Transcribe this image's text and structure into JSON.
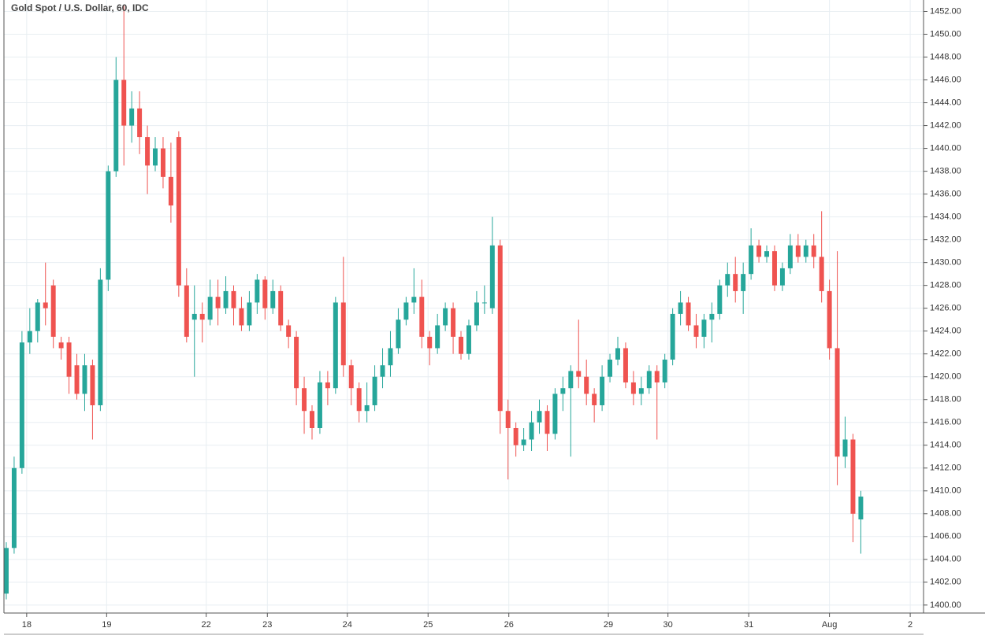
{
  "chart_data": {
    "type": "candlestick",
    "title": "Gold Spot / U.S. Dollar, 60, IDC",
    "up_color": "#26a69a",
    "down_color": "#ef5350",
    "grid": true,
    "ylim": [
      1399.3,
      1453
    ],
    "xlim": [
      -0.3,
      117
    ],
    "yticks": [
      {
        "value": 1400,
        "label": "1400.00"
      },
      {
        "value": 1402,
        "label": "1402.00"
      },
      {
        "value": 1404,
        "label": "1404.00"
      },
      {
        "value": 1406,
        "label": "1406.00"
      },
      {
        "value": 1408,
        "label": "1408.00"
      },
      {
        "value": 1410,
        "label": "1410.00"
      },
      {
        "value": 1412,
        "label": "1412.00"
      },
      {
        "value": 1414,
        "label": "1414.00"
      },
      {
        "value": 1416,
        "label": "1416.00"
      },
      {
        "value": 1418,
        "label": "1418.00"
      },
      {
        "value": 1420,
        "label": "1420.00"
      },
      {
        "value": 1422,
        "label": "1422.00"
      },
      {
        "value": 1424,
        "label": "1424.00"
      },
      {
        "value": 1426,
        "label": "1426.00"
      },
      {
        "value": 1428,
        "label": "1428.00"
      },
      {
        "value": 1430,
        "label": "1430.00"
      },
      {
        "value": 1432,
        "label": "1432.00"
      },
      {
        "value": 1434,
        "label": "1434.00"
      },
      {
        "value": 1436,
        "label": "1436.00"
      },
      {
        "value": 1438,
        "label": "1438.00"
      },
      {
        "value": 1440,
        "label": "1440.00"
      },
      {
        "value": 1442,
        "label": "1442.00"
      },
      {
        "value": 1444,
        "label": "1444.00"
      },
      {
        "value": 1446,
        "label": "1446.00"
      },
      {
        "value": 1448,
        "label": "1448.00"
      },
      {
        "value": 1450,
        "label": "1450.00"
      },
      {
        "value": 1452,
        "label": "1452.00"
      }
    ],
    "xticks": [
      {
        "value": 2.6,
        "label": "18"
      },
      {
        "value": 12.8,
        "label": "19"
      },
      {
        "value": 25.5,
        "label": "22"
      },
      {
        "value": 33.3,
        "label": "23"
      },
      {
        "value": 43.5,
        "label": "24"
      },
      {
        "value": 53.8,
        "label": "25"
      },
      {
        "value": 64.1,
        "label": "26"
      },
      {
        "value": 76.8,
        "label": "29"
      },
      {
        "value": 84.4,
        "label": "30"
      },
      {
        "value": 94.7,
        "label": "31"
      },
      {
        "value": 105.0,
        "label": "Aug"
      },
      {
        "value": 115.3,
        "label": "2"
      }
    ],
    "open": [
      1401,
      1405,
      1412,
      1423,
      1424,
      1426.5,
      1428,
      1423,
      1423,
      1421,
      1418.5,
      1421,
      1417.5,
      1428.5,
      1438,
      1446,
      1442,
      1443.5,
      1441,
      1438.5,
      1440,
      1437.5,
      1441,
      1428,
      1425,
      1425.5,
      1425,
      1427,
      1426,
      1427.5,
      1426,
      1424.5,
      1426.5,
      1428.5,
      1426,
      1427.5,
      1424.5,
      1423.5,
      1419,
      1417,
      1415.5,
      1419.5,
      1419,
      1426.5,
      1421,
      1419,
      1417,
      1417.5,
      1420,
      1421,
      1422.5,
      1425,
      1426.5,
      1427,
      1423.5,
      1422.5,
      1424.5,
      1426,
      1423.5,
      1422,
      1424.5,
      1426.5,
      1426,
      1431.5,
      1417,
      1415.5,
      1414,
      1414.5,
      1416,
      1417,
      1415,
      1418.5,
      1419,
      1420.5,
      1420,
      1418.5,
      1417.5,
      1420,
      1421.5,
      1422.5,
      1419.5,
      1418.5,
      1419,
      1420.5,
      1419.5,
      1421.5,
      1425.5,
      1426.5,
      1424.5,
      1423.5,
      1425,
      1425.5,
      1428,
      1429,
      1427.5,
      1429,
      1431.5,
      1430.5,
      1431,
      1428,
      1429.5,
      1431.5,
      1430.5,
      1431.5,
      1430.5,
      1427.5,
      1422.5,
      1413,
      1414.5,
      1407.5
    ],
    "high": [
      1405.5,
      1413,
      1424,
      1426,
      1426.8,
      1430,
      1428.5,
      1423.5,
      1423.5,
      1422,
      1422,
      1421.5,
      1429.5,
      1438.5,
      1448,
      1452.5,
      1445,
      1445,
      1442,
      1441,
      1441,
      1440.5,
      1441.5,
      1429.5,
      1428,
      1426.5,
      1428.5,
      1428.5,
      1428.8,
      1428,
      1427,
      1427.5,
      1429,
      1428.8,
      1428.5,
      1428,
      1425,
      1424,
      1420,
      1417.5,
      1420.5,
      1420.5,
      1427,
      1430.5,
      1421.5,
      1419.5,
      1419.5,
      1421,
      1422.5,
      1424,
      1426,
      1427,
      1429.5,
      1428.5,
      1424,
      1425.5,
      1426.5,
      1426.5,
      1424,
      1425,
      1427.5,
      1428,
      1434,
      1432,
      1418,
      1416,
      1415.5,
      1417,
      1418,
      1417.5,
      1419,
      1420,
      1421,
      1425,
      1421.5,
      1419,
      1421,
      1422,
      1423.5,
      1423,
      1420.5,
      1420,
      1421,
      1421,
      1422,
      1426,
      1427.5,
      1427,
      1425.5,
      1425.5,
      1426.5,
      1428.5,
      1430,
      1430.5,
      1430,
      1433,
      1432,
      1431.5,
      1431.5,
      1430,
      1432.5,
      1432.5,
      1432,
      1432.5,
      1434.5,
      1428.5,
      1431,
      1416.5,
      1415,
      1410
    ],
    "low": [
      1400.5,
      1404.5,
      1411.5,
      1422,
      1423,
      1424.5,
      1422.5,
      1421.5,
      1418.5,
      1418,
      1417,
      1414.5,
      1417,
      1427.5,
      1437.5,
      1438.5,
      1440.5,
      1439.5,
      1436,
      1438,
      1436.5,
      1433.5,
      1427,
      1423,
      1420,
      1423,
      1424.5,
      1424.5,
      1425.5,
      1424.5,
      1424,
      1424,
      1425.5,
      1425,
      1425.5,
      1424,
      1422.5,
      1417.5,
      1415,
      1414.5,
      1415,
      1417.5,
      1418.5,
      1420,
      1417.5,
      1416,
      1416,
      1417,
      1419,
      1420,
      1422,
      1424.5,
      1425.5,
      1422.5,
      1421,
      1422,
      1424,
      1422,
      1421.5,
      1421.5,
      1424,
      1425.5,
      1425.5,
      1415,
      1411,
      1413,
      1413.5,
      1413.5,
      1415,
      1413.5,
      1414.5,
      1417,
      1413,
      1419,
      1417.5,
      1416,
      1417,
      1419.5,
      1421,
      1419,
      1417.5,
      1417.5,
      1418.5,
      1414.5,
      1419,
      1421,
      1424.5,
      1424,
      1422.5,
      1422.5,
      1423,
      1425,
      1427,
      1426.5,
      1425.5,
      1428.5,
      1430,
      1430,
      1427.5,
      1427.5,
      1429,
      1430,
      1430,
      1429.5,
      1426.5,
      1421.5,
      1410.5,
      1412,
      1405.5,
      1404.5
    ],
    "close": [
      1405,
      1412,
      1423,
      1424,
      1426.5,
      1426,
      1423.5,
      1422.5,
      1420,
      1418.5,
      1421,
      1417.5,
      1428.5,
      1438,
      1446,
      1442,
      1443.5,
      1441,
      1438.5,
      1440,
      1437.5,
      1435,
      1428,
      1423.5,
      1425.5,
      1425,
      1427,
      1426,
      1427.5,
      1426,
      1424.5,
      1426.5,
      1428.5,
      1426,
      1427.5,
      1424.5,
      1423.5,
      1419,
      1417,
      1415.5,
      1419.5,
      1419,
      1426.5,
      1421,
      1419,
      1417,
      1417.5,
      1420,
      1421,
      1422.5,
      1425,
      1426.5,
      1427,
      1423.5,
      1422.5,
      1424.5,
      1426,
      1423.5,
      1422,
      1424.5,
      1426.5,
      1426.5,
      1431.5,
      1417,
      1415.5,
      1414,
      1414.5,
      1416,
      1417,
      1415,
      1418.5,
      1419,
      1420.5,
      1420,
      1418.5,
      1417.5,
      1420,
      1421.5,
      1422.5,
      1419.5,
      1418.5,
      1419,
      1420.5,
      1419.5,
      1421.5,
      1425.5,
      1426.5,
      1424.5,
      1423.5,
      1425,
      1425.5,
      1428,
      1429,
      1427.5,
      1429,
      1431.5,
      1430.5,
      1431,
      1428,
      1429.5,
      1431.5,
      1430.5,
      1431.5,
      1430.5,
      1427.5,
      1422.5,
      1413,
      1414.5,
      1408,
      1409.5
    ]
  }
}
